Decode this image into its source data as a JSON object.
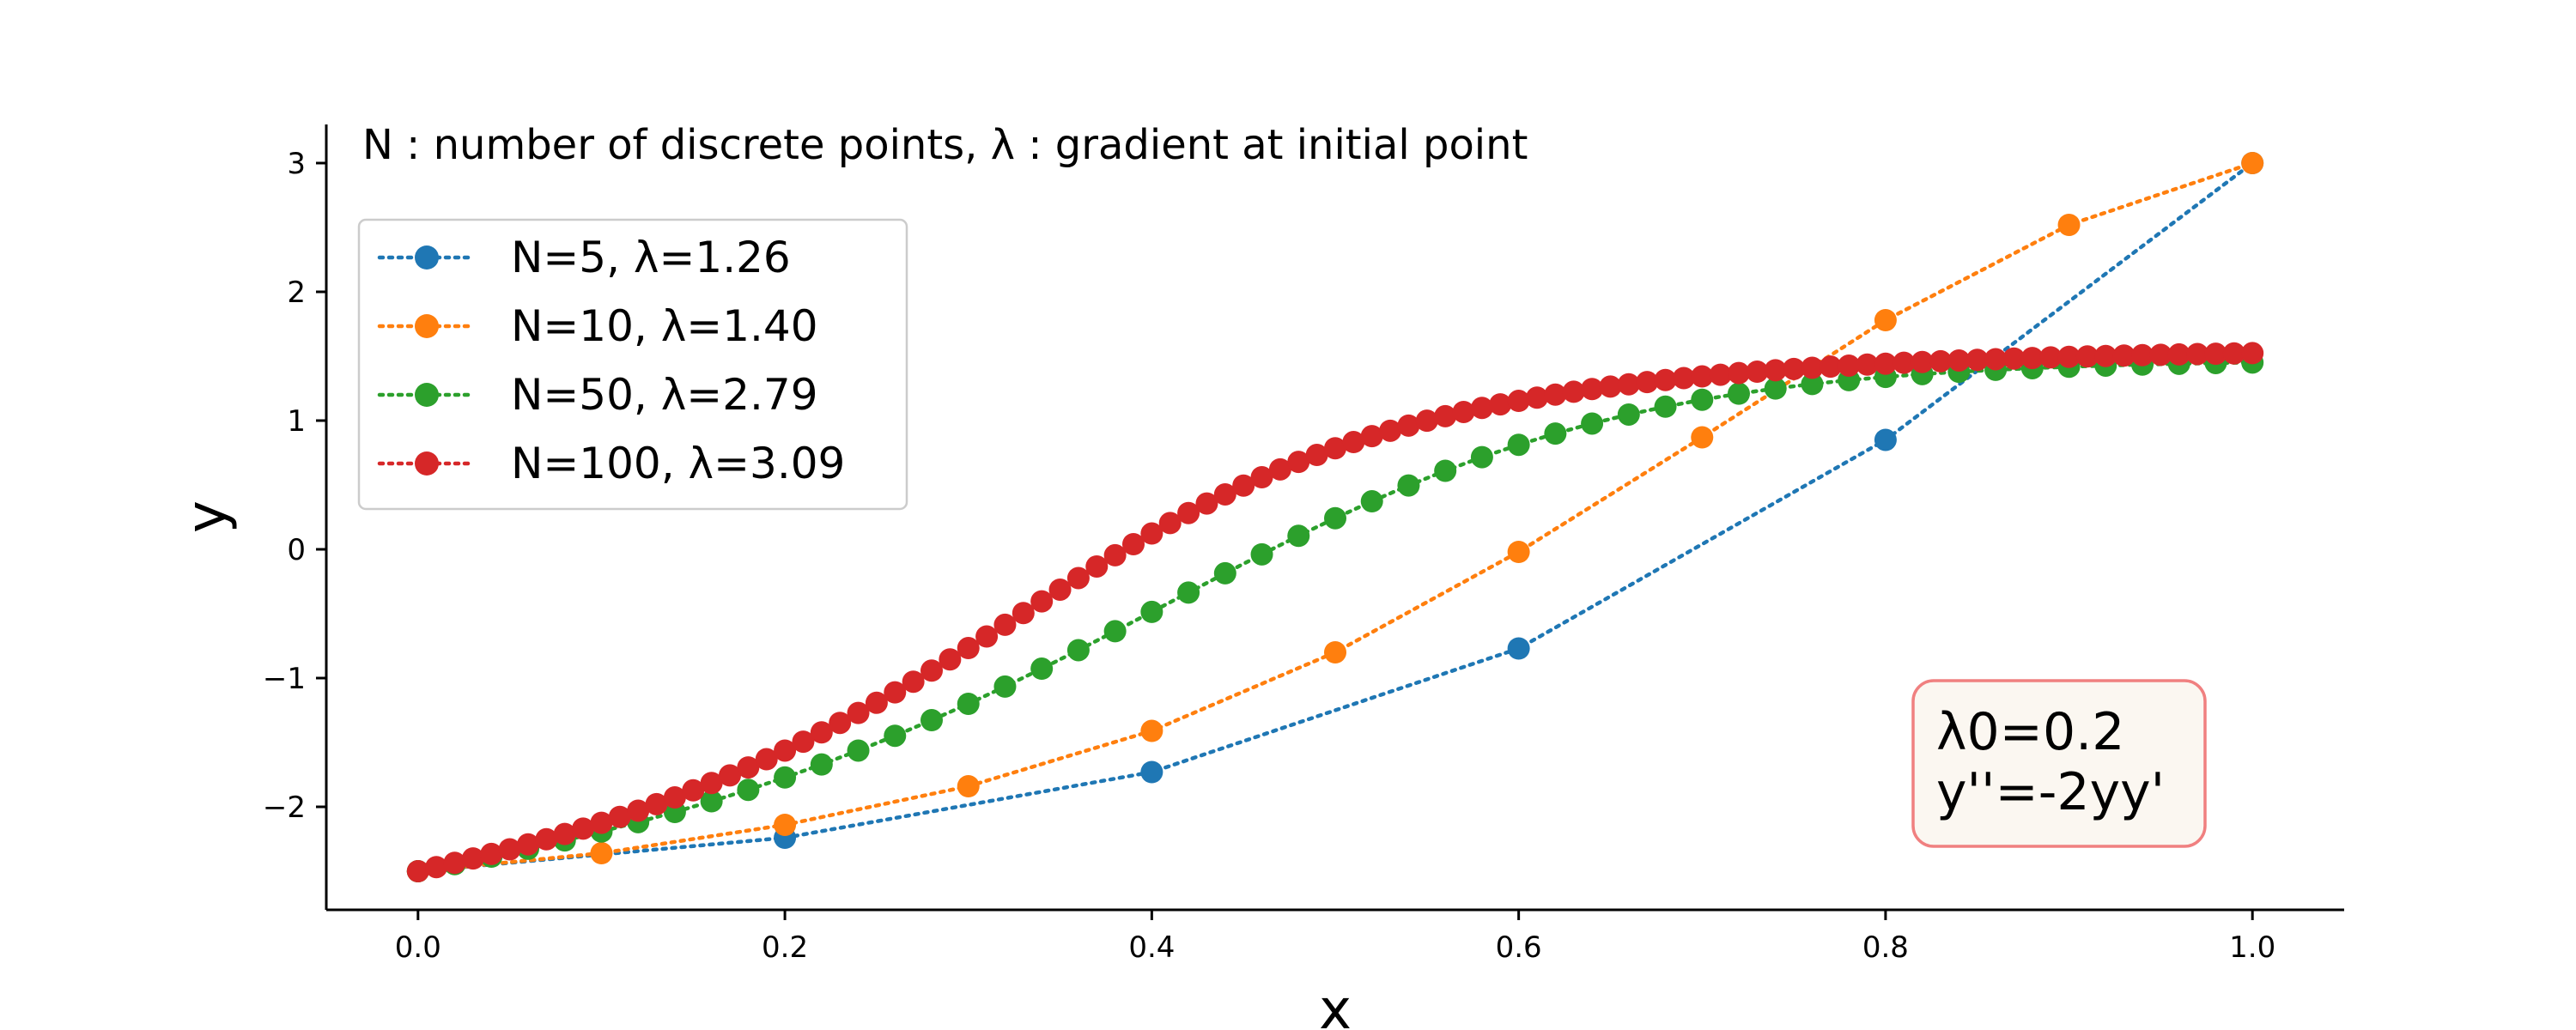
{
  "chart_data": {
    "type": "line",
    "xlabel": "x",
    "ylabel": "y",
    "xlim": [
      -0.05,
      1.05
    ],
    "ylim": [
      -2.8,
      3.3
    ],
    "xticks": [
      0.0,
      0.2,
      0.4,
      0.6,
      0.8,
      1.0
    ],
    "xtick_labels": [
      "0.0",
      "0.2",
      "0.4",
      "0.6",
      "0.8",
      "1.0"
    ],
    "yticks": [
      -2,
      -1,
      0,
      1,
      2,
      3
    ],
    "ytick_labels": [
      "−2",
      "−1",
      "0",
      "1",
      "2",
      "3"
    ],
    "grid": false,
    "legend_position": "upper-left",
    "annotation": "N : number of discrete points,  λ : gradient at initial point",
    "box_text": [
      "λ0=0.2",
      "y''=-2yy'"
    ],
    "colors": {
      "box_border": "#f08080",
      "box_fill": "#fbf7f1"
    },
    "series": [
      {
        "name": "N=5,  λ=1.26",
        "color": "#1f77b4",
        "x": [
          0.0,
          0.2,
          0.4,
          0.6,
          0.8,
          1.0
        ],
        "y": [
          -2.5,
          -2.24,
          -1.73,
          -0.77,
          0.85,
          3.0
        ]
      },
      {
        "name": "N=10,  λ=1.40",
        "color": "#ff7f0e",
        "x": [
          0.0,
          0.1,
          0.2,
          0.3,
          0.4,
          0.5,
          0.6,
          0.7,
          0.8,
          0.9,
          1.0
        ],
        "y": [
          -2.5,
          -2.36,
          -2.14,
          -1.84,
          -1.41,
          -0.8,
          -0.02,
          0.87,
          1.78,
          2.52,
          3.0
        ]
      },
      {
        "name": "N=50,  λ=2.79",
        "color": "#2ca02c",
        "x": [
          0.0,
          0.02,
          0.04,
          0.06,
          0.08,
          0.1,
          0.12,
          0.14,
          0.16,
          0.18,
          0.2,
          0.22,
          0.24,
          0.26,
          0.28,
          0.3,
          0.32,
          0.34,
          0.36,
          0.38,
          0.4,
          0.42,
          0.44,
          0.46,
          0.48,
          0.5,
          0.52,
          0.54,
          0.56,
          0.58,
          0.6,
          0.62,
          0.64,
          0.66,
          0.68,
          0.7,
          0.72,
          0.74,
          0.76,
          0.78,
          0.8,
          0.82,
          0.84,
          0.86,
          0.88,
          0.9,
          0.92,
          0.94,
          0.96,
          0.98,
          1.0
        ],
        "y": [
          -2.5,
          -2.445,
          -2.387,
          -2.326,
          -2.261,
          -2.192,
          -2.119,
          -2.04,
          -1.957,
          -1.868,
          -1.772,
          -1.671,
          -1.563,
          -1.448,
          -1.327,
          -1.2,
          -1.066,
          -0.927,
          -0.783,
          -0.636,
          -0.486,
          -0.336,
          -0.186,
          -0.039,
          0.105,
          0.242,
          0.373,
          0.496,
          0.61,
          0.716,
          0.812,
          0.899,
          0.977,
          1.047,
          1.108,
          1.162,
          1.209,
          1.249,
          1.284,
          1.314,
          1.339,
          1.361,
          1.379,
          1.394,
          1.407,
          1.418,
          1.427,
          1.435,
          1.441,
          1.447,
          1.451
        ]
      },
      {
        "name": "N=100,  λ=3.09",
        "color": "#d62728",
        "x": [
          0.0,
          0.01,
          0.02,
          0.03,
          0.04,
          0.05,
          0.06,
          0.07,
          0.08,
          0.09,
          0.1,
          0.11,
          0.12,
          0.13,
          0.14,
          0.15,
          0.16,
          0.17,
          0.18,
          0.19,
          0.2,
          0.21,
          0.22,
          0.23,
          0.24,
          0.25,
          0.26,
          0.27,
          0.28,
          0.29,
          0.3,
          0.31,
          0.32,
          0.33,
          0.34,
          0.35,
          0.36,
          0.37,
          0.38,
          0.39,
          0.4,
          0.41,
          0.42,
          0.43,
          0.44,
          0.45,
          0.46,
          0.47,
          0.48,
          0.49,
          0.5,
          0.51,
          0.52,
          0.53,
          0.54,
          0.55,
          0.56,
          0.57,
          0.58,
          0.59,
          0.6,
          0.61,
          0.62,
          0.63,
          0.64,
          0.65,
          0.66,
          0.67,
          0.68,
          0.69,
          0.7,
          0.71,
          0.72,
          0.73,
          0.74,
          0.75,
          0.76,
          0.77,
          0.78,
          0.79,
          0.8,
          0.81,
          0.82,
          0.83,
          0.84,
          0.85,
          0.86,
          0.87,
          0.88,
          0.89,
          0.9,
          0.91,
          0.92,
          0.93,
          0.94,
          0.95,
          0.96,
          0.97,
          0.98,
          0.99,
          1.0
        ],
        "y": [
          -2.5,
          -2.468,
          -2.435,
          -2.401,
          -2.366,
          -2.33,
          -2.292,
          -2.252,
          -2.211,
          -2.169,
          -2.124,
          -2.078,
          -2.03,
          -1.979,
          -1.927,
          -1.872,
          -1.815,
          -1.756,
          -1.694,
          -1.63,
          -1.563,
          -1.494,
          -1.422,
          -1.348,
          -1.271,
          -1.192,
          -1.111,
          -1.028,
          -0.942,
          -0.855,
          -0.767,
          -0.677,
          -0.586,
          -0.495,
          -0.404,
          -0.313,
          -0.223,
          -0.133,
          -0.046,
          0.04,
          0.123,
          0.204,
          0.282,
          0.356,
          0.427,
          0.495,
          0.56,
          0.621,
          0.679,
          0.733,
          0.785,
          0.833,
          0.879,
          0.921,
          0.961,
          0.999,
          1.034,
          1.067,
          1.098,
          1.126,
          1.153,
          1.178,
          1.202,
          1.224,
          1.245,
          1.264,
          1.282,
          1.299,
          1.315,
          1.33,
          1.343,
          1.356,
          1.369,
          1.38,
          1.391,
          1.401,
          1.41,
          1.419,
          1.427,
          1.435,
          1.442,
          1.449,
          1.455,
          1.461,
          1.467,
          1.472,
          1.477,
          1.482,
          1.486,
          1.491,
          1.495,
          1.498,
          1.502,
          1.505,
          1.508,
          1.511,
          1.514,
          1.517,
          1.519,
          1.522,
          1.524
        ]
      }
    ]
  }
}
